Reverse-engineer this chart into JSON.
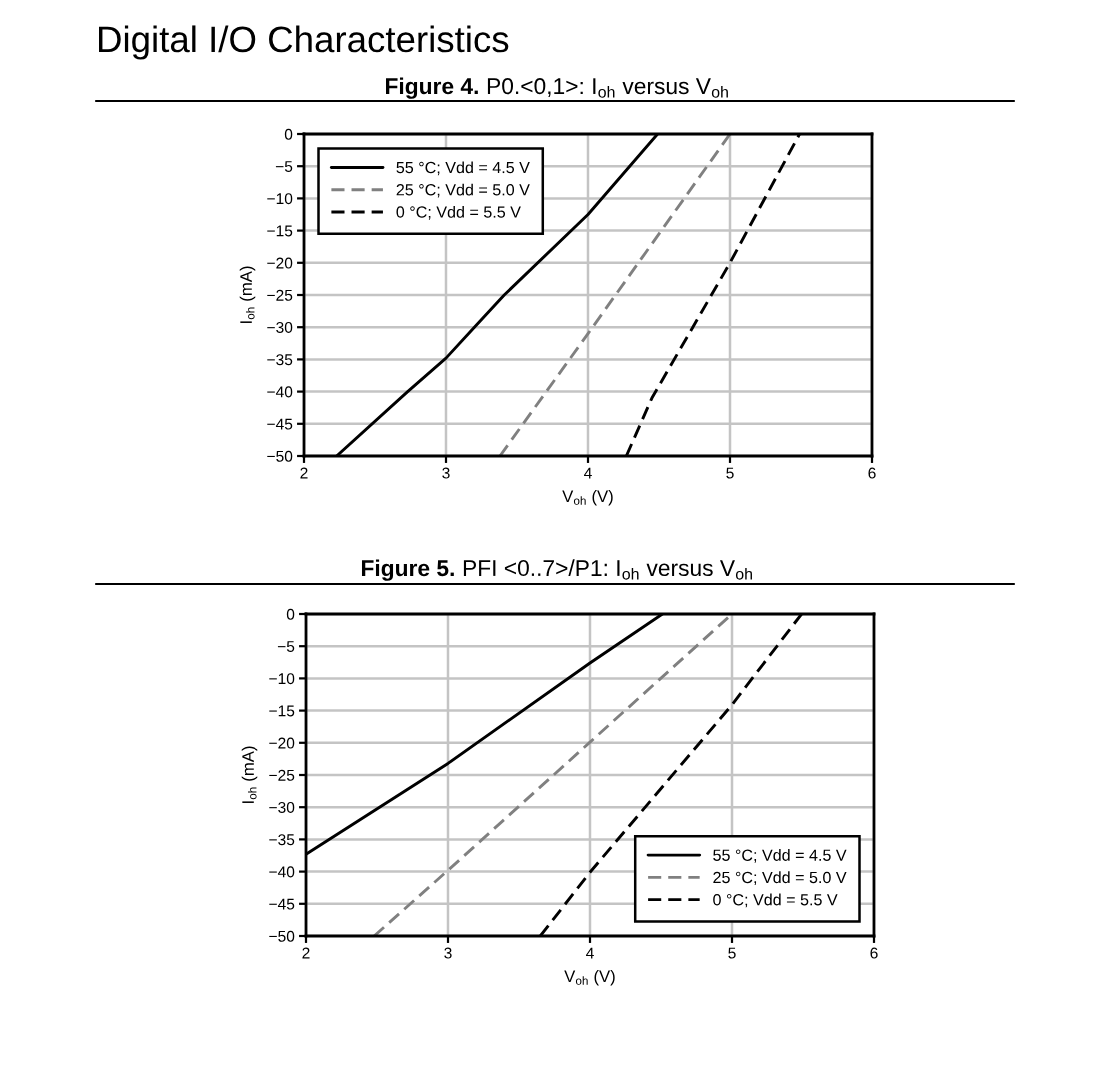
{
  "chart_data": [
    {
      "type": "line",
      "title": "Figure 4. P0.<0,1>: I$_{oh}$ versus V$_{oh}$",
      "annotations": [
        "Digital I/O Characteristics"
      ],
      "xlabel": "V$_{oh}$ (V)",
      "ylabel": "I$_{oh}$ (mA)",
      "xlim": [
        2,
        6
      ],
      "xticks": [
        2,
        3,
        4,
        5,
        6
      ],
      "ylim": [
        -50,
        0
      ],
      "yticks": [
        0,
        {
          "value": -5,
          "label": "−5"
        },
        {
          "value": -10,
          "label": "−10"
        },
        {
          "value": -15,
          "label": "−15"
        },
        {
          "value": -20,
          "label": "−20"
        },
        {
          "value": -25,
          "label": "−25"
        },
        {
          "value": -30,
          "label": "−30"
        },
        {
          "value": -35,
          "label": "−35"
        },
        {
          "value": -40,
          "label": "−40"
        },
        {
          "value": -45,
          "label": "−45"
        },
        {
          "value": -50,
          "label": "−50"
        }
      ],
      "grid": true,
      "legend": "top left",
      "series": [
        {
          "name": "55 °C; Vdd = 4.5 V",
          "color": "#000000",
          "line_style": "solid",
          "x": [
            2.23,
            2.73,
            3.0,
            3.2,
            3.41,
            4.0,
            4.49
          ],
          "values": [
            -50,
            -40,
            -34.8,
            -30,
            -25,
            -12.5,
            0
          ]
        },
        {
          "name": "25 °C; Vdd = 5.0 V",
          "color": "#808080",
          "line_style": "dashed",
          "x": [
            3.38,
            4.0,
            4.5,
            5.0
          ],
          "values": [
            -50,
            -31,
            -15.5,
            0
          ]
        },
        {
          "name": "0 °C; Vdd = 5.5 V",
          "color": "#000000",
          "line_style": "dashed",
          "x": [
            4.27,
            4.45,
            5.0,
            5.49
          ],
          "values": [
            -50,
            -41,
            -20,
            0
          ]
        }
      ]
    },
    {
      "type": "line",
      "title": "Figure 5. PFI <0..7>/P1: I$_{oh}$ versus V$_{oh}$",
      "xlabel": "V$_{oh}$ (V)",
      "ylabel": "I$_{oh}$ (mA)",
      "xlim": [
        2,
        6
      ],
      "xticks": [
        2,
        3,
        4,
        5,
        6
      ],
      "ylim": [
        -50,
        0
      ],
      "yticks": [
        0,
        {
          "value": -5,
          "label": "−5"
        },
        {
          "value": -10,
          "label": "−10"
        },
        {
          "value": -15,
          "label": "−15"
        },
        {
          "value": -20,
          "label": "−20"
        },
        {
          "value": -25,
          "label": "−25"
        },
        {
          "value": -30,
          "label": "−30"
        },
        {
          "value": -35,
          "label": "−35"
        },
        {
          "value": -40,
          "label": "−40"
        },
        {
          "value": -45,
          "label": "−45"
        },
        {
          "value": -50,
          "label": "−50"
        }
      ],
      "grid": true,
      "legend": "bottom right",
      "series": [
        {
          "name": "55 °C; Vdd = 4.5 V",
          "color": "#000000",
          "line_style": "solid",
          "x": [
            2,
            3,
            4,
            4.51
          ],
          "values": [
            -37.3,
            -23.2,
            -7.6,
            0
          ]
        },
        {
          "name": "25 °C; Vdd = 5.0 V",
          "color": "#808080",
          "line_style": "dashed",
          "x": [
            2.48,
            3,
            4,
            5.0
          ],
          "values": [
            -50,
            -39.8,
            -19.9,
            0
          ]
        },
        {
          "name": "0 °C; Vdd = 5.5 V",
          "color": "#000000",
          "line_style": "dashed",
          "x": [
            3.65,
            4,
            5,
            5.49
          ],
          "values": [
            -50,
            -40.1,
            -14.1,
            0
          ]
        }
      ]
    }
  ]
}
